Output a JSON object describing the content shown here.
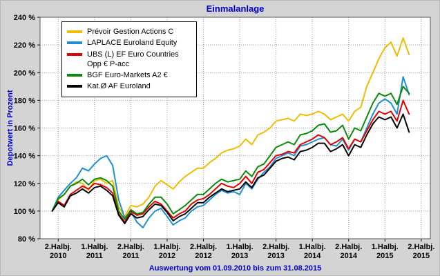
{
  "colors": {
    "title_text": "#0000cc",
    "figure_background": "#d4d4d4",
    "plot_background": "#ffffff",
    "gridline": "#999999"
  },
  "chart_data": {
    "type": "line",
    "title": "Einmalanlage",
    "xlabel": "",
    "ylabel": "Depotwert in Prozent",
    "annotation": "Auswertung vom 01.09.2010 bis zum 31.08.2015",
    "ylim": [
      80,
      240
    ],
    "y_ticks": [
      80,
      100,
      120,
      140,
      160,
      180,
      200,
      220,
      240
    ],
    "y_tick_suffix": " %",
    "grid": "dotted",
    "legend_position": "top-left",
    "x_ticks": [
      {
        "month": 1,
        "label": [
          "2.Halbj.",
          "2010"
        ]
      },
      {
        "month": 7,
        "label": [
          "1.Halbj.",
          "2011"
        ]
      },
      {
        "month": 13,
        "label": [
          "2.Halbj.",
          "2011"
        ]
      },
      {
        "month": 19,
        "label": [
          "1.Halbj.",
          "2012"
        ]
      },
      {
        "month": 25,
        "label": [
          "2.Halbj.",
          "2012"
        ]
      },
      {
        "month": 31,
        "label": [
          "1.Halbj.",
          "2013"
        ]
      },
      {
        "month": 37,
        "label": [
          "2.Halbj.",
          "2013"
        ]
      },
      {
        "month": 43,
        "label": [
          "1.Halbj.",
          "2014"
        ]
      },
      {
        "month": 49,
        "label": [
          "2.Halbj.",
          "2014"
        ]
      },
      {
        "month": 55,
        "label": [
          "1.Halbj.",
          "2015"
        ]
      },
      {
        "month": 61,
        "label": [
          "2.Halbj.",
          "2015"
        ]
      }
    ],
    "x": [
      "2010-09",
      "2010-10",
      "2010-11",
      "2010-12",
      "2011-01",
      "2011-02",
      "2011-03",
      "2011-04",
      "2011-05",
      "2011-06",
      "2011-07",
      "2011-08",
      "2011-09",
      "2011-10",
      "2011-11",
      "2011-12",
      "2012-01",
      "2012-02",
      "2012-03",
      "2012-04",
      "2012-05",
      "2012-06",
      "2012-07",
      "2012-08",
      "2012-09",
      "2012-10",
      "2012-11",
      "2012-12",
      "2013-01",
      "2013-02",
      "2013-03",
      "2013-04",
      "2013-05",
      "2013-06",
      "2013-07",
      "2013-08",
      "2013-09",
      "2013-10",
      "2013-11",
      "2013-12",
      "2014-01",
      "2014-02",
      "2014-03",
      "2014-04",
      "2014-05",
      "2014-06",
      "2014-07",
      "2014-08",
      "2014-09",
      "2014-10",
      "2014-11",
      "2014-12",
      "2015-01",
      "2015-02",
      "2015-03",
      "2015-04",
      "2015-05",
      "2015-06",
      "2015-07",
      "2015-08"
    ],
    "series": [
      {
        "name": "Prévoir Gestion Actions C",
        "color": "#f0bc00",
        "values": [
          100,
          108,
          112,
          118,
          121,
          120,
          115,
          122,
          123,
          120,
          122,
          103,
          96,
          104,
          103,
          105,
          110,
          118,
          122,
          119,
          116,
          121,
          125,
          128,
          131,
          131,
          135,
          138,
          142,
          144,
          145,
          147,
          152,
          148,
          155,
          157,
          160,
          165,
          166,
          167,
          165,
          170,
          169,
          170,
          172,
          170,
          166,
          168,
          170,
          165,
          172,
          175,
          190,
          200,
          210,
          218,
          222,
          212,
          225,
          213
        ]
      },
      {
        "name": "LAPLACE Euroland Equity",
        "color": "#1e8fd5",
        "values": [
          100,
          110,
          115,
          120,
          124,
          131,
          129,
          134,
          138,
          140,
          133,
          108,
          95,
          100,
          92,
          88,
          95,
          100,
          102,
          96,
          90,
          93,
          95,
          100,
          103,
          104,
          108,
          112,
          115,
          113,
          114,
          112,
          120,
          116,
          123,
          128,
          132,
          138,
          140,
          142,
          140,
          147,
          148,
          150,
          152,
          153,
          148,
          147,
          152,
          144,
          152,
          150,
          160,
          170,
          178,
          181,
          178,
          170,
          197,
          184
        ]
      },
      {
        "name": "UBS (L) EF Euro Countries Opp € P-acc",
        "color": "#e10000",
        "values": [
          100,
          107,
          104,
          112,
          115,
          118,
          116,
          120,
          119,
          117,
          113,
          98,
          92,
          100,
          97,
          98,
          103,
          107,
          105,
          100,
          95,
          98,
          100,
          105,
          108,
          109,
          112,
          116,
          120,
          118,
          117,
          120,
          125,
          120,
          128,
          130,
          135,
          140,
          141,
          143,
          142,
          148,
          150,
          152,
          155,
          153,
          148,
          150,
          153,
          145,
          152,
          150,
          158,
          166,
          172,
          170,
          172,
          165,
          180,
          170
        ]
      },
      {
        "name": "BGF Euro-Markets A2 €",
        "color": "#0a8a0a",
        "values": [
          100,
          109,
          112,
          118,
          120,
          123,
          119,
          123,
          124,
          122,
          118,
          100,
          94,
          101,
          98,
          99,
          105,
          110,
          110,
          105,
          98,
          101,
          104,
          108,
          112,
          112,
          116,
          120,
          123,
          121,
          122,
          123,
          129,
          125,
          132,
          134,
          140,
          146,
          148,
          150,
          148,
          155,
          156,
          158,
          162,
          163,
          157,
          158,
          162,
          152,
          160,
          158,
          168,
          178,
          185,
          183,
          185,
          177,
          190,
          185
        ]
      },
      {
        "name": "Kat.Ø AF Euroland",
        "color": "#000000",
        "values": [
          100,
          106,
          103,
          111,
          113,
          116,
          113,
          117,
          118,
          115,
          111,
          97,
          91,
          98,
          95,
          96,
          101,
          105,
          104,
          99,
          93,
          96,
          98,
          102,
          106,
          106,
          110,
          113,
          116,
          114,
          115,
          116,
          121,
          117,
          124,
          126,
          131,
          136,
          138,
          139,
          137,
          143,
          144,
          146,
          149,
          149,
          143,
          145,
          148,
          140,
          148,
          146,
          155,
          163,
          168,
          166,
          168,
          160,
          170,
          157
        ]
      }
    ]
  }
}
